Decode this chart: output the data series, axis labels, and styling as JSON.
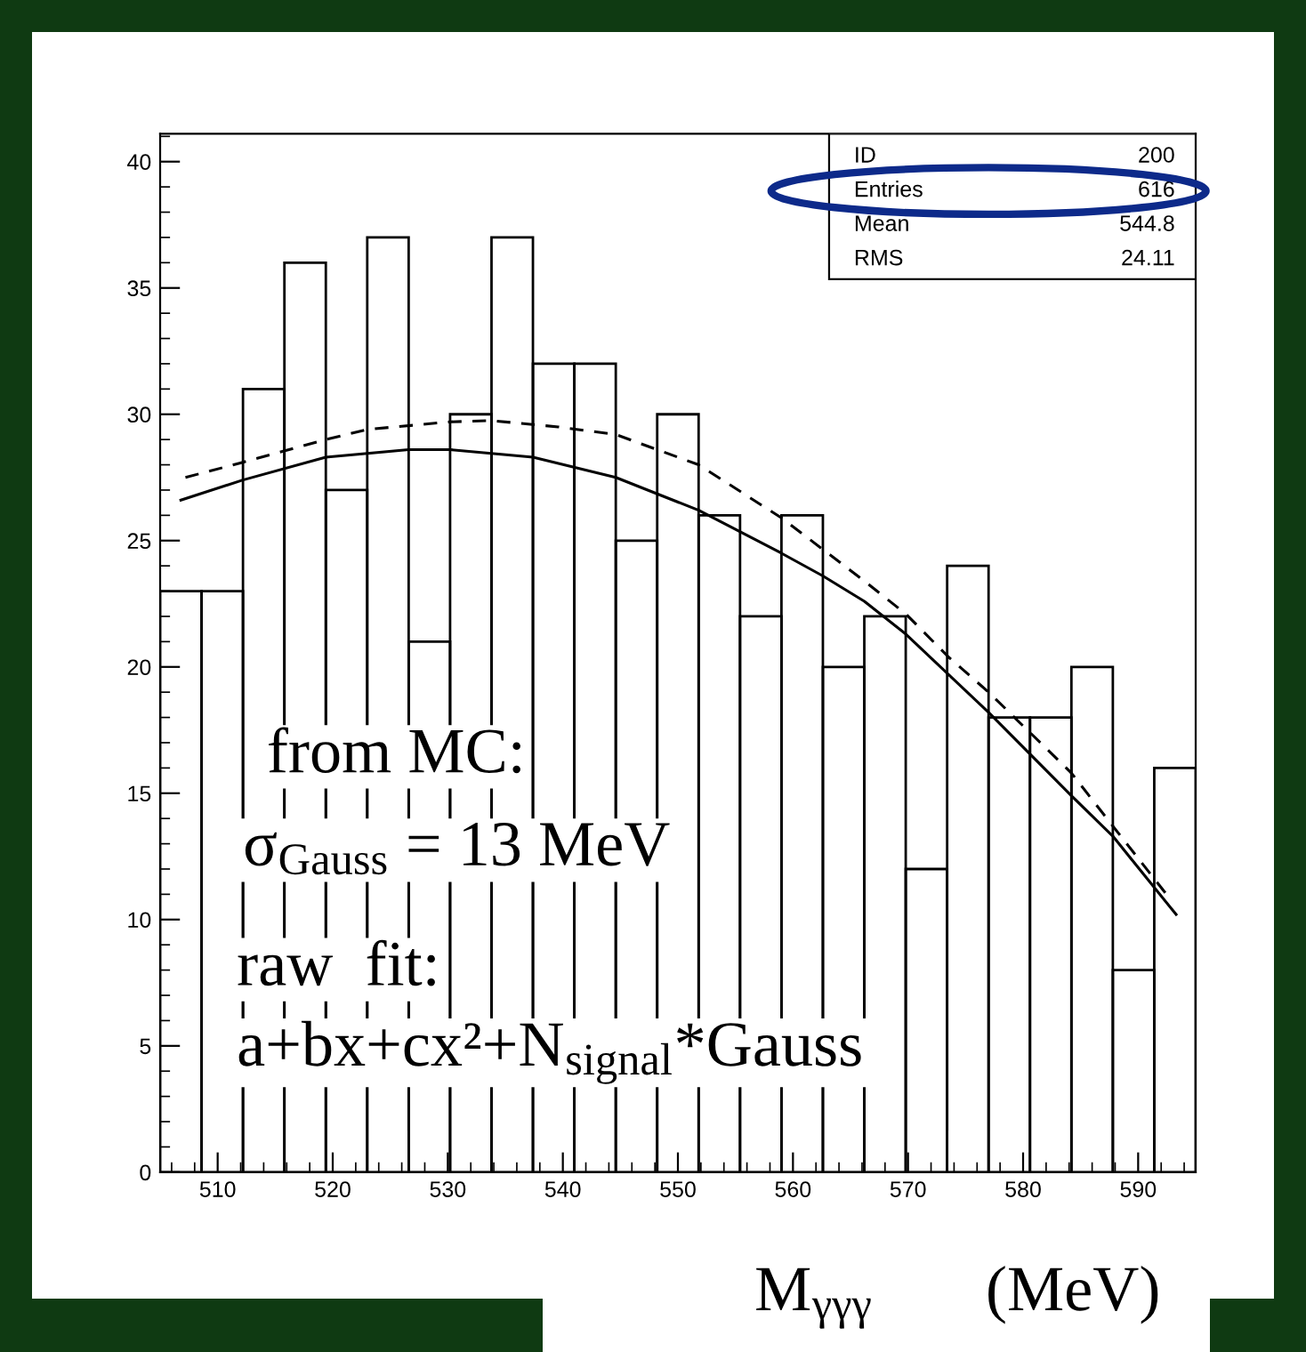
{
  "chart_data": {
    "type": "histogram",
    "xlabel": "M$_{γγγ}$       (MeV)",
    "bins": [
      505,
      508.6,
      512.2,
      515.8,
      519.4,
      523,
      526.6,
      530.2,
      533.8,
      537.4,
      541,
      544.6,
      548.2,
      551.8,
      555.4,
      559,
      562.6,
      566.2,
      569.8,
      573.4,
      577,
      580.6,
      584.2,
      587.8,
      591.4,
      595
    ],
    "values": [
      23,
      23,
      31,
      36,
      27,
      37,
      21,
      30,
      37,
      32,
      32,
      25,
      30,
      26,
      22,
      26,
      20,
      22,
      12,
      24,
      18,
      18,
      20,
      8,
      16
    ],
    "color": "#000000",
    "series": [
      {
        "type": "line",
        "line_style": "solid",
        "color": "#000000",
        "x": [
          506.8,
          512.2,
          519.4,
          526.6,
          530.2,
          537.4,
          544.6,
          551.8,
          559,
          562.6,
          566.2,
          569.8,
          577,
          584.2,
          587.8,
          593.3
        ],
        "values": [
          26.6,
          27.4,
          28.3,
          28.6,
          28.6,
          28.3,
          27.5,
          26.2,
          24.5,
          23.6,
          22.6,
          21.3,
          18.2,
          14.9,
          13.3,
          10.2
        ]
      },
      {
        "type": "line",
        "line_style": "dashed",
        "color": "#000000",
        "x": [
          507.2,
          512.2,
          519.4,
          523,
          530.2,
          533.8,
          539.6,
          544.6,
          551.8,
          559,
          566.2,
          569.8,
          573.5,
          577,
          584.2,
          587.8,
          592.8
        ],
        "values": [
          27.5,
          28.1,
          29.0,
          29.4,
          29.7,
          29.75,
          29.5,
          29.2,
          28.0,
          25.9,
          23.4,
          22.1,
          20.4,
          19.0,
          15.8,
          13.7,
          10.8
        ]
      }
    ],
    "xlim": [
      505,
      595
    ],
    "ylim": [
      0,
      41.1
    ],
    "xticks": [
      510,
      520,
      530,
      540,
      550,
      560,
      570,
      580,
      590
    ],
    "yticks": [
      0,
      5,
      10,
      15,
      20,
      25,
      30,
      35,
      40
    ],
    "grid": false,
    "legend": false,
    "annotations": [
      "ID",
      "200",
      "Entries",
      "616",
      "Mean",
      "544.8",
      "RMS",
      "24.11",
      "from MC:",
      "σ$_{Gauss}$ = 13 MeV",
      "raw  fit:",
      "a+bx+cx²+N$_{signal}$*Gauss"
    ]
  }
}
